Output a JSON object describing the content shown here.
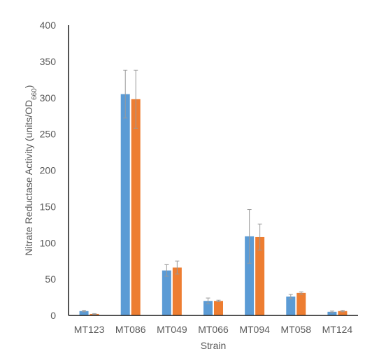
{
  "chart_data": {
    "type": "bar",
    "categories": [
      "MT123",
      "MT086",
      "MT049",
      "MT066",
      "MT094",
      "MT058",
      "MT124"
    ],
    "series": [
      {
        "color": "#5b9bd5",
        "values": [
          6,
          305,
          62,
          20,
          109,
          26,
          5
        ],
        "errors": [
          1,
          33,
          8,
          4,
          37,
          3,
          1
        ]
      },
      {
        "color": "#ed7d31",
        "values": [
          2,
          298,
          66,
          20,
          108,
          31,
          6
        ],
        "errors": [
          0.5,
          40,
          9,
          1,
          18,
          1.5,
          1
        ]
      }
    ],
    "xlabel": "Strain",
    "ylabel": {
      "text": "Nitrate Reductase Activity (units/OD",
      "subscript": "660",
      "suffix": ")"
    },
    "ylim": [
      0,
      400
    ],
    "yticks": [
      "0",
      "50",
      "100",
      "150",
      "200",
      "250",
      "300",
      "350",
      "400"
    ],
    "grid": false,
    "legend": "none"
  }
}
